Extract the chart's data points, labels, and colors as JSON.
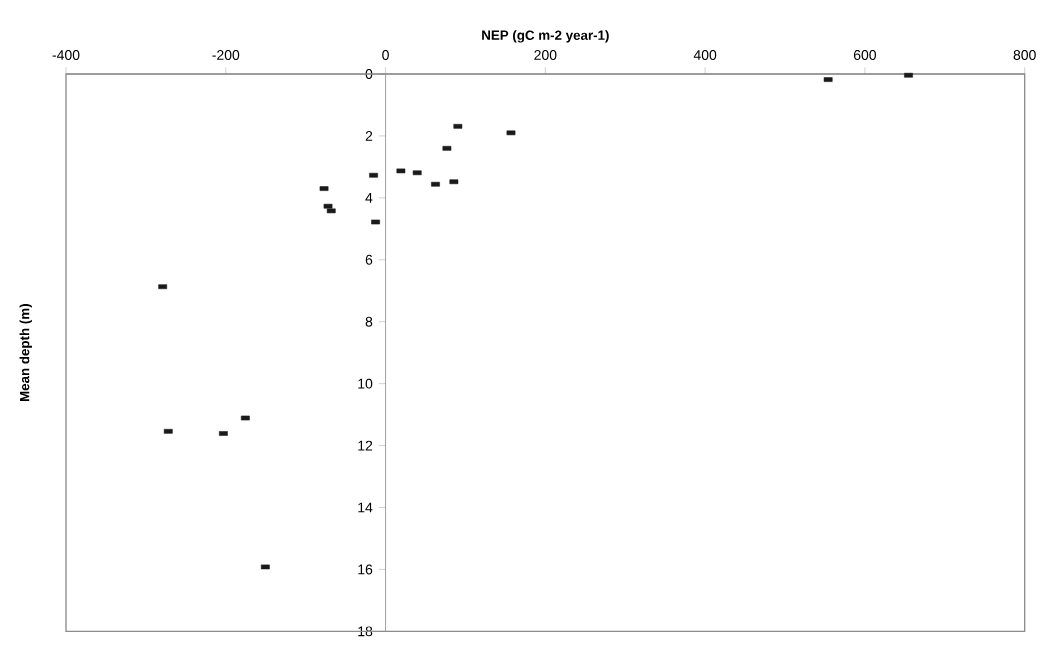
{
  "chart_data": {
    "type": "scatter",
    "xlabel": "NEP (gC m-2 year-1)",
    "ylabel": "Mean depth (m)",
    "x": [
      654.6,
      554,
      90.5,
      157,
      76.8,
      19.2,
      39.6,
      -15,
      62.5,
      85.5,
      -77,
      -72,
      -68,
      -12.5,
      -279,
      -175.5,
      -272,
      -203,
      -150.5
    ],
    "values": [
      0.04,
      0.18,
      1.69,
      1.9,
      2.4,
      3.13,
      3.19,
      3.27,
      3.56,
      3.48,
      3.7,
      4.27,
      4.42,
      4.78,
      6.87,
      11.11,
      11.54,
      11.61,
      15.92
    ],
    "color": "#1a1a1a",
    "marker": "square",
    "xlim": [
      -400,
      800
    ],
    "xticks": [
      -400,
      -200,
      0,
      200,
      400,
      600,
      800
    ],
    "ylim": [
      18,
      0
    ],
    "yticks": [
      0,
      2,
      4,
      6,
      8,
      10,
      12,
      14,
      16,
      18
    ]
  }
}
